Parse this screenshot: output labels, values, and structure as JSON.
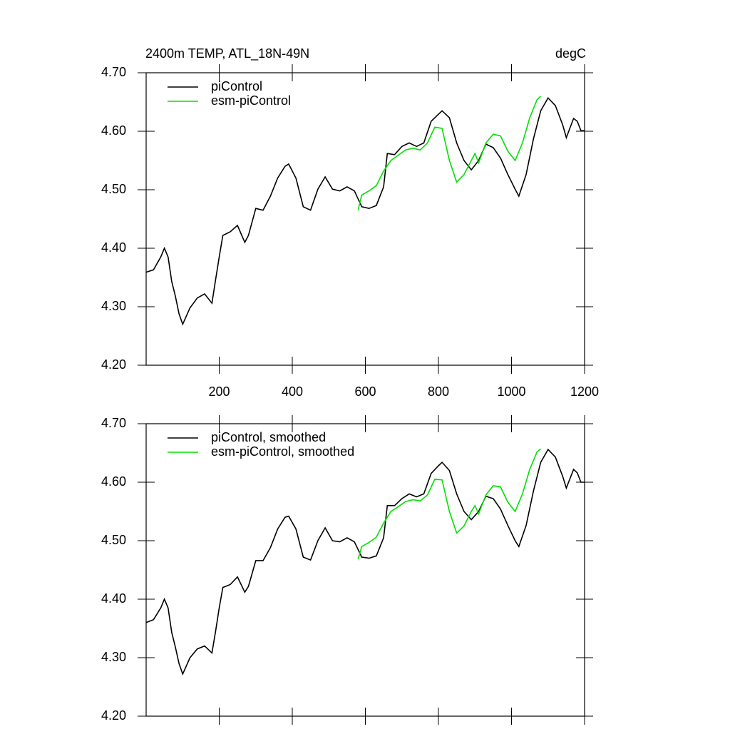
{
  "chart_data": [
    {
      "type": "line",
      "title": "2400m TEMP, ATL_18N-49N",
      "units": "degC",
      "xlim": [
        0,
        1200
      ],
      "xticks": [
        200,
        400,
        600,
        800,
        1000,
        1200
      ],
      "ylim": [
        4.2,
        4.7
      ],
      "yticks": [
        {
          "value": 4.2,
          "label": "4.20"
        },
        {
          "value": 4.3,
          "label": "4.30"
        },
        {
          "value": 4.4,
          "label": "4.40"
        },
        {
          "value": 4.5,
          "label": "4.50"
        },
        {
          "value": 4.6,
          "label": "4.60"
        },
        {
          "value": 4.7,
          "label": "4.70"
        }
      ],
      "legend": "top-left",
      "series": [
        {
          "name": "piControl",
          "color": "#000000",
          "x": [
            0,
            20,
            40,
            50,
            60,
            70,
            80,
            90,
            100,
            120,
            140,
            160,
            180,
            190,
            200,
            210,
            230,
            250,
            270,
            280,
            300,
            320,
            340,
            360,
            380,
            390,
            410,
            430,
            450,
            470,
            490,
            510,
            530,
            550,
            570,
            590,
            610,
            630,
            650,
            660,
            680,
            700,
            720,
            740,
            760,
            780,
            800,
            810,
            830,
            850,
            870,
            890,
            910,
            930,
            950,
            970,
            990,
            1010,
            1020,
            1040,
            1060,
            1080,
            1100,
            1120,
            1140,
            1150,
            1170,
            1180,
            1190,
            1200
          ],
          "values": [
            4.359,
            4.363,
            4.385,
            4.4,
            4.385,
            4.343,
            4.318,
            4.288,
            4.27,
            4.298,
            4.315,
            4.322,
            4.306,
            4.346,
            4.385,
            4.422,
            4.428,
            4.439,
            4.41,
            4.422,
            4.468,
            4.465,
            4.489,
            4.52,
            4.54,
            4.544,
            4.52,
            4.471,
            4.465,
            4.501,
            4.522,
            4.501,
            4.498,
            4.505,
            4.498,
            4.471,
            4.468,
            4.473,
            4.505,
            4.562,
            4.56,
            4.574,
            4.58,
            4.574,
            4.58,
            4.617,
            4.629,
            4.635,
            4.623,
            4.58,
            4.55,
            4.534,
            4.55,
            4.578,
            4.572,
            4.554,
            4.526,
            4.501,
            4.489,
            4.526,
            4.587,
            4.635,
            4.657,
            4.644,
            4.611,
            4.589,
            4.622,
            4.617,
            4.601,
            4.601
          ]
        },
        {
          "name": "esm-piControl",
          "color": "#00e000",
          "x": [
            580,
            590,
            610,
            630,
            650,
            670,
            690,
            710,
            730,
            750,
            770,
            790,
            810,
            830,
            850,
            870,
            890,
            900,
            910,
            930,
            950,
            970,
            990,
            1010,
            1030,
            1050,
            1070,
            1080
          ],
          "values": [
            4.465,
            4.491,
            4.498,
            4.507,
            4.532,
            4.55,
            4.559,
            4.568,
            4.571,
            4.568,
            4.58,
            4.607,
            4.605,
            4.55,
            4.513,
            4.526,
            4.55,
            4.562,
            4.546,
            4.58,
            4.595,
            4.592,
            4.566,
            4.55,
            4.58,
            4.623,
            4.654,
            4.66
          ]
        }
      ]
    },
    {
      "type": "line",
      "xlim": [
        0,
        1200
      ],
      "xticks": [
        200,
        400,
        600,
        800,
        1000,
        1200
      ],
      "ylim": [
        4.2,
        4.7
      ],
      "yticks": [
        {
          "value": 4.2,
          "label": "4.20"
        },
        {
          "value": 4.3,
          "label": "4.30"
        },
        {
          "value": 4.4,
          "label": "4.40"
        },
        {
          "value": 4.5,
          "label": "4.50"
        },
        {
          "value": 4.6,
          "label": "4.60"
        },
        {
          "value": 4.7,
          "label": "4.70"
        }
      ],
      "legend": "top-left",
      "series": [
        {
          "name": "piControl, smoothed",
          "color": "#000000",
          "x": [
            0,
            20,
            40,
            50,
            60,
            70,
            80,
            90,
            100,
            120,
            140,
            160,
            180,
            190,
            200,
            210,
            230,
            250,
            270,
            280,
            300,
            320,
            340,
            360,
            380,
            390,
            410,
            430,
            450,
            470,
            490,
            510,
            530,
            550,
            570,
            590,
            610,
            630,
            650,
            660,
            680,
            700,
            720,
            740,
            760,
            780,
            800,
            810,
            830,
            850,
            870,
            890,
            910,
            930,
            950,
            970,
            990,
            1010,
            1020,
            1040,
            1060,
            1080,
            1100,
            1120,
            1140,
            1150,
            1170,
            1180,
            1190,
            1200
          ],
          "values": [
            4.36,
            4.365,
            4.385,
            4.4,
            4.385,
            4.343,
            4.318,
            4.29,
            4.272,
            4.3,
            4.315,
            4.32,
            4.308,
            4.345,
            4.385,
            4.42,
            4.425,
            4.438,
            4.412,
            4.422,
            4.466,
            4.466,
            4.488,
            4.52,
            4.54,
            4.542,
            4.52,
            4.472,
            4.467,
            4.5,
            4.522,
            4.5,
            4.498,
            4.505,
            4.498,
            4.472,
            4.47,
            4.474,
            4.505,
            4.56,
            4.56,
            4.572,
            4.58,
            4.575,
            4.58,
            4.615,
            4.628,
            4.634,
            4.62,
            4.58,
            4.55,
            4.536,
            4.55,
            4.576,
            4.572,
            4.554,
            4.526,
            4.5,
            4.49,
            4.526,
            4.585,
            4.634,
            4.656,
            4.643,
            4.61,
            4.59,
            4.622,
            4.616,
            4.6,
            4.6
          ]
        },
        {
          "name": "esm-piControl, smoothed",
          "color": "#00e000",
          "x": [
            580,
            590,
            610,
            630,
            650,
            670,
            690,
            710,
            730,
            750,
            770,
            790,
            810,
            830,
            850,
            870,
            890,
            900,
            910,
            930,
            950,
            970,
            990,
            1010,
            1030,
            1050,
            1070,
            1080
          ],
          "values": [
            4.468,
            4.49,
            4.497,
            4.506,
            4.53,
            4.55,
            4.558,
            4.567,
            4.57,
            4.568,
            4.578,
            4.605,
            4.604,
            4.55,
            4.513,
            4.525,
            4.55,
            4.56,
            4.546,
            4.578,
            4.594,
            4.592,
            4.566,
            4.55,
            4.58,
            4.622,
            4.652,
            4.657
          ]
        }
      ]
    }
  ]
}
